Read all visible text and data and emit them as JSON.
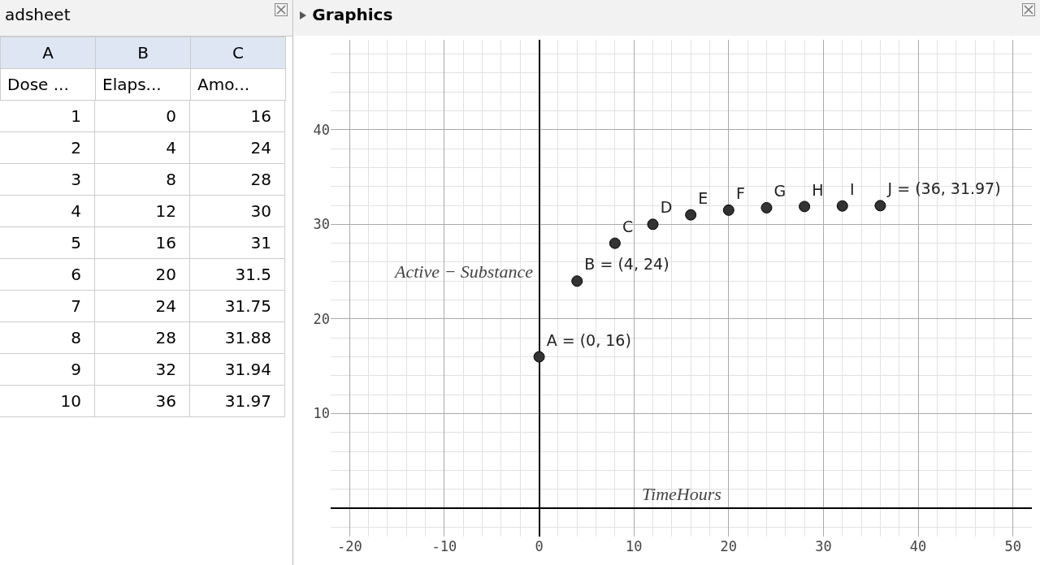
{
  "chart_data": [
    {
      "type": "heatmap",
      "title": "adsheet",
      "annotations": [
        "A",
        "B",
        "C",
        "Dose ..."
      ],
      "categories": [
        "Elaps...",
        "Amo..."
      ],
      "y_categories": [
        "1",
        "2",
        "3",
        "4",
        "5",
        "6",
        "7",
        "8",
        "9",
        "10"
      ],
      "data_labels": true,
      "cells": [
        [
          0,
          16
        ],
        [
          4,
          24
        ],
        [
          8,
          28
        ],
        [
          12,
          30
        ],
        [
          16,
          31
        ],
        [
          20,
          31.5
        ],
        [
          24,
          31.75
        ],
        [
          28,
          31.88
        ],
        [
          32,
          31.94
        ],
        [
          36,
          31.97
        ]
      ]
    },
    {
      "type": "scatter",
      "title": "Graphics",
      "xlabel": "TimeHours",
      "ylabel": "Active − Substance",
      "x": [
        0,
        4,
        8,
        12,
        16,
        20,
        24,
        28,
        32,
        36
      ],
      "series": [
        {
          "color": "#333333",
          "values": [
            16,
            24,
            28,
            30,
            31,
            31.5,
            31.75,
            31.88,
            31.94,
            31.97
          ]
        }
      ],
      "value_labels": [
        "A = (0, 16)",
        "B = (4, 24)",
        "C",
        "D",
        "E",
        "F",
        "G",
        "H",
        "I",
        "J = (36, 31.97)"
      ],
      "xlim": [
        -22,
        52
      ],
      "ylim": [
        -3,
        49.5
      ],
      "xticks": [
        -20,
        -10,
        0,
        10,
        20,
        30,
        40,
        50
      ],
      "yticks": [
        10,
        20,
        30,
        40
      ],
      "grid": true,
      "legend": false,
      "marker": "circle"
    }
  ]
}
